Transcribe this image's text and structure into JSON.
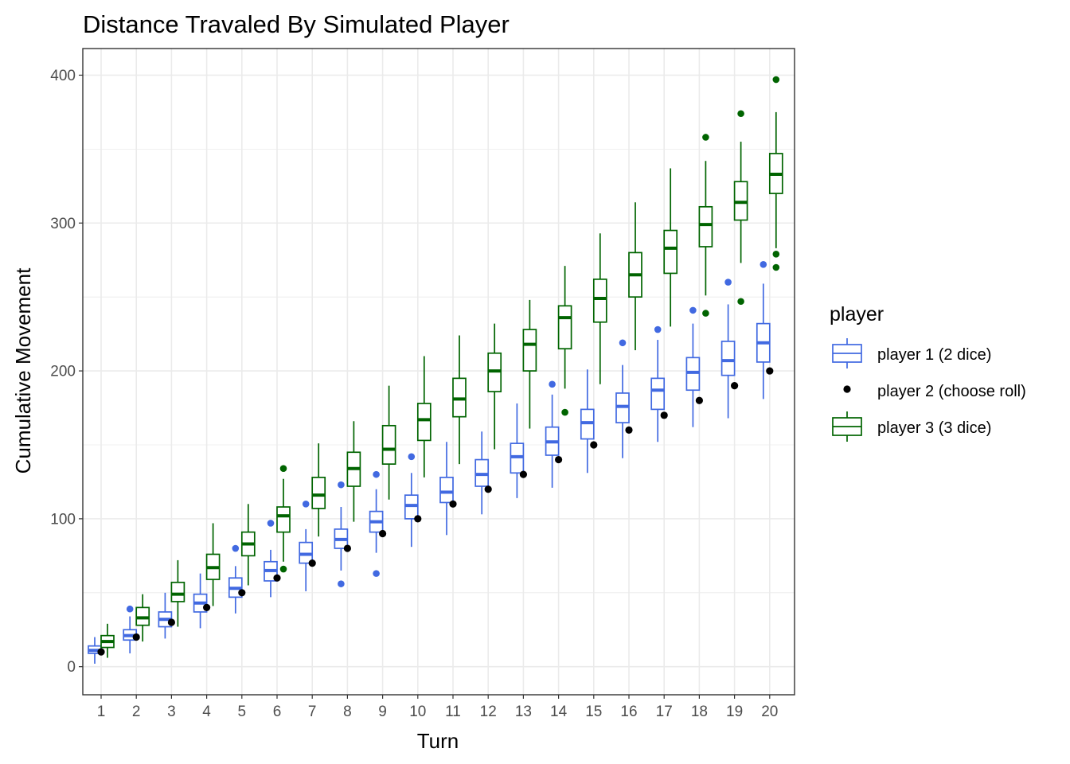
{
  "chart_data": {
    "type": "boxplot",
    "title": "Distance Travaled By Simulated Player",
    "xlabel": "Turn",
    "ylabel": "Cumulative Movement",
    "categories": [
      "1",
      "2",
      "3",
      "4",
      "5",
      "6",
      "7",
      "8",
      "9",
      "10",
      "11",
      "12",
      "13",
      "14",
      "15",
      "16",
      "17",
      "18",
      "19",
      "20"
    ],
    "ylim": [
      -19,
      418
    ],
    "yticks": [
      0,
      100,
      200,
      300,
      400
    ],
    "grid": true,
    "legend": {
      "title": "player",
      "position": "right",
      "entries": [
        "player 1 (2 dice)",
        "player 2 (choose roll)",
        "player 3 (3 dice)"
      ]
    },
    "colors": {
      "player1": "#4169e1",
      "player2": "#000000",
      "player3": "#006400",
      "grid": "#ebebeb",
      "panel_border": "#333333"
    },
    "series": [
      {
        "name": "player 1 (2 dice)",
        "type": "box",
        "boxes": [
          {
            "whisker_low": 2,
            "q1": 9,
            "median": 11,
            "q3": 14,
            "whisker_high": 20,
            "outliers": []
          },
          {
            "whisker_low": 9,
            "q1": 18,
            "median": 21,
            "q3": 25,
            "whisker_high": 34,
            "outliers": [
              39
            ]
          },
          {
            "whisker_low": 19,
            "q1": 27,
            "median": 32,
            "q3": 37,
            "whisker_high": 50,
            "outliers": []
          },
          {
            "whisker_low": 26,
            "q1": 37,
            "median": 43,
            "q3": 49,
            "whisker_high": 63,
            "outliers": []
          },
          {
            "whisker_low": 36,
            "q1": 47,
            "median": 53,
            "q3": 60,
            "whisker_high": 68,
            "outliers": [
              80
            ]
          },
          {
            "whisker_low": 47,
            "q1": 58,
            "median": 65,
            "q3": 71,
            "whisker_high": 79,
            "outliers": [
              97
            ]
          },
          {
            "whisker_low": 51,
            "q1": 70,
            "median": 76,
            "q3": 84,
            "whisker_high": 93,
            "outliers": [
              110
            ]
          },
          {
            "whisker_low": 65,
            "q1": 80,
            "median": 86,
            "q3": 93,
            "whisker_high": 108,
            "outliers": [
              123,
              56
            ]
          },
          {
            "whisker_low": 77,
            "q1": 91,
            "median": 98,
            "q3": 105,
            "whisker_high": 120,
            "outliers": [
              130,
              63
            ]
          },
          {
            "whisker_low": 81,
            "q1": 100,
            "median": 109,
            "q3": 116,
            "whisker_high": 131,
            "outliers": [
              142
            ]
          },
          {
            "whisker_low": 89,
            "q1": 111,
            "median": 118,
            "q3": 128,
            "whisker_high": 152,
            "outliers": []
          },
          {
            "whisker_low": 103,
            "q1": 122,
            "median": 130,
            "q3": 140,
            "whisker_high": 159,
            "outliers": []
          },
          {
            "whisker_low": 114,
            "q1": 131,
            "median": 142,
            "q3": 151,
            "whisker_high": 178,
            "outliers": []
          },
          {
            "whisker_low": 121,
            "q1": 143,
            "median": 152,
            "q3": 162,
            "whisker_high": 184,
            "outliers": [
              191
            ]
          },
          {
            "whisker_low": 131,
            "q1": 154,
            "median": 165,
            "q3": 174,
            "whisker_high": 201,
            "outliers": []
          },
          {
            "whisker_low": 141,
            "q1": 165,
            "median": 176,
            "q3": 185,
            "whisker_high": 204,
            "outliers": [
              219
            ]
          },
          {
            "whisker_low": 152,
            "q1": 174,
            "median": 187,
            "q3": 195,
            "whisker_high": 221,
            "outliers": [
              228
            ]
          },
          {
            "whisker_low": 162,
            "q1": 187,
            "median": 199,
            "q3": 209,
            "whisker_high": 232,
            "outliers": [
              241
            ]
          },
          {
            "whisker_low": 168,
            "q1": 197,
            "median": 207,
            "q3": 220,
            "whisker_high": 245,
            "outliers": [
              260
            ]
          },
          {
            "whisker_low": 181,
            "q1": 206,
            "median": 219,
            "q3": 232,
            "whisker_high": 259,
            "outliers": [
              272
            ]
          }
        ]
      },
      {
        "name": "player 2 (choose roll)",
        "type": "point",
        "values": [
          10,
          20,
          30,
          40,
          50,
          60,
          70,
          80,
          90,
          100,
          110,
          120,
          130,
          140,
          150,
          160,
          170,
          180,
          190,
          200
        ]
      },
      {
        "name": "player 3 (3 dice)",
        "type": "box",
        "boxes": [
          {
            "whisker_low": 6,
            "q1": 13,
            "median": 17,
            "q3": 21,
            "whisker_high": 29,
            "outliers": []
          },
          {
            "whisker_low": 17,
            "q1": 28,
            "median": 33,
            "q3": 40,
            "whisker_high": 49,
            "outliers": []
          },
          {
            "whisker_low": 27,
            "q1": 44,
            "median": 49,
            "q3": 57,
            "whisker_high": 72,
            "outliers": []
          },
          {
            "whisker_low": 41,
            "q1": 59,
            "median": 67,
            "q3": 76,
            "whisker_high": 97,
            "outliers": []
          },
          {
            "whisker_low": 55,
            "q1": 75,
            "median": 83,
            "q3": 91,
            "whisker_high": 110,
            "outliers": []
          },
          {
            "whisker_low": 71,
            "q1": 91,
            "median": 102,
            "q3": 108,
            "whisker_high": 127,
            "outliers": [
              134,
              66
            ]
          },
          {
            "whisker_low": 88,
            "q1": 107,
            "median": 116,
            "q3": 128,
            "whisker_high": 151,
            "outliers": []
          },
          {
            "whisker_low": 98,
            "q1": 122,
            "median": 134,
            "q3": 145,
            "whisker_high": 166,
            "outliers": []
          },
          {
            "whisker_low": 113,
            "q1": 137,
            "median": 147,
            "q3": 163,
            "whisker_high": 190,
            "outliers": []
          },
          {
            "whisker_low": 128,
            "q1": 153,
            "median": 167,
            "q3": 178,
            "whisker_high": 210,
            "outliers": []
          },
          {
            "whisker_low": 137,
            "q1": 169,
            "median": 181,
            "q3": 195,
            "whisker_high": 224,
            "outliers": []
          },
          {
            "whisker_low": 147,
            "q1": 186,
            "median": 200,
            "q3": 212,
            "whisker_high": 232,
            "outliers": []
          },
          {
            "whisker_low": 161,
            "q1": 200,
            "median": 218,
            "q3": 228,
            "whisker_high": 248,
            "outliers": []
          },
          {
            "whisker_low": 188,
            "q1": 215,
            "median": 236,
            "q3": 244,
            "whisker_high": 271,
            "outliers": [
              172
            ]
          },
          {
            "whisker_low": 191,
            "q1": 233,
            "median": 249,
            "q3": 262,
            "whisker_high": 293,
            "outliers": []
          },
          {
            "whisker_low": 214,
            "q1": 250,
            "median": 265,
            "q3": 280,
            "whisker_high": 314,
            "outliers": []
          },
          {
            "whisker_low": 230,
            "q1": 266,
            "median": 283,
            "q3": 295,
            "whisker_high": 337,
            "outliers": []
          },
          {
            "whisker_low": 251,
            "q1": 284,
            "median": 299,
            "q3": 311,
            "whisker_high": 342,
            "outliers": [
              358,
              239
            ]
          },
          {
            "whisker_low": 273,
            "q1": 302,
            "median": 314,
            "q3": 328,
            "whisker_high": 355,
            "outliers": [
              374,
              247
            ]
          },
          {
            "whisker_low": 283,
            "q1": 320,
            "median": 333,
            "q3": 347,
            "whisker_high": 375,
            "outliers": [
              397,
              279,
              270
            ]
          }
        ]
      }
    ]
  }
}
